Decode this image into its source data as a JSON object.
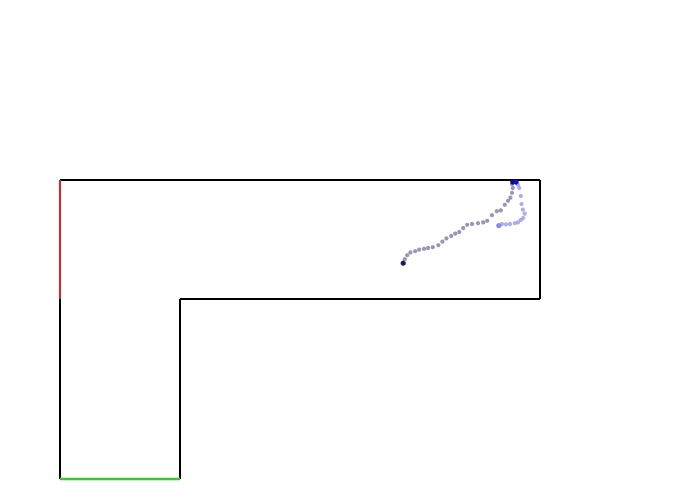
{
  "maze": {
    "wall_color": "#000000",
    "start_marker_color": "#e02020",
    "goal_marker_color": "#33cc33"
  },
  "trajectories": [
    {
      "color": "#6b6b9a",
      "start_color": "#1a1a50",
      "end_color": "#0b0b8c",
      "points": [
        [
          8.58,
          2.08
        ],
        [
          8.62,
          1.98
        ],
        [
          8.68,
          1.88
        ],
        [
          8.76,
          1.81
        ],
        [
          8.88,
          1.78
        ],
        [
          8.98,
          1.74
        ],
        [
          9.1,
          1.72
        ],
        [
          9.2,
          1.7
        ],
        [
          9.32,
          1.68
        ],
        [
          9.46,
          1.63
        ],
        [
          9.56,
          1.54
        ],
        [
          9.66,
          1.46
        ],
        [
          9.78,
          1.4
        ],
        [
          9.88,
          1.34
        ],
        [
          9.98,
          1.3
        ],
        [
          10.08,
          1.2
        ],
        [
          10.18,
          1.12
        ],
        [
          10.3,
          1.1
        ],
        [
          10.45,
          1.08
        ],
        [
          10.58,
          1.06
        ],
        [
          10.68,
          1.02
        ],
        [
          10.8,
          0.88
        ],
        [
          10.92,
          0.78
        ],
        [
          11.02,
          0.76
        ],
        [
          11.12,
          0.62
        ],
        [
          11.2,
          0.52
        ],
        [
          11.26,
          0.44
        ],
        [
          11.3,
          0.32
        ],
        [
          11.32,
          0.2
        ],
        [
          11.3,
          0.1
        ],
        [
          11.32,
          0.05
        ]
      ]
    },
    {
      "color": "#8a8af0",
      "start_color": "#8a8af0",
      "end_color": "#1010d0",
      "points": [
        [
          10.97,
          1.14
        ],
        [
          11.05,
          1.1
        ],
        [
          11.15,
          1.11
        ],
        [
          11.25,
          1.1
        ],
        [
          11.37,
          1.08
        ],
        [
          11.45,
          1.06
        ],
        [
          11.52,
          1.0
        ],
        [
          11.58,
          0.95
        ],
        [
          11.62,
          0.84
        ],
        [
          11.57,
          0.74
        ],
        [
          11.54,
          0.6
        ],
        [
          11.52,
          0.4
        ],
        [
          11.48,
          0.2
        ],
        [
          11.45,
          0.12
        ],
        [
          11.42,
          0.06
        ],
        [
          11.4,
          0.05
        ]
      ]
    }
  ]
}
